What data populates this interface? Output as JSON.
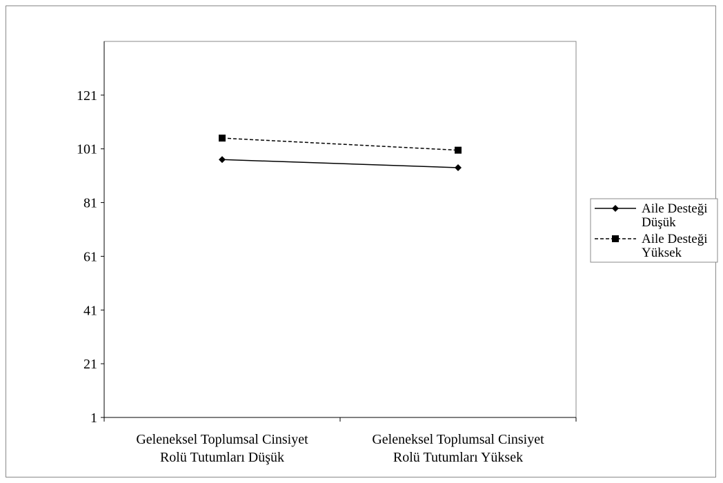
{
  "colors": {
    "line": "#000000",
    "frame": "#888888",
    "background": "#ffffff"
  },
  "chart_data": {
    "type": "line",
    "title": "",
    "xlabel": "",
    "ylabel": "",
    "categories": [
      [
        "Geleneksel Toplumsal Cinsiyet",
        "Rolü Tutumları Düşük"
      ],
      [
        "Geleneksel Toplumsal Cinsiyet",
        "Rolü Tutumları Yüksek"
      ]
    ],
    "ylim": [
      1,
      141
    ],
    "yticks": [
      1,
      21,
      41,
      61,
      81,
      101,
      121
    ],
    "grid": false,
    "legend_position": "right",
    "series": [
      {
        "name": [
          "Aile Desteği",
          "Düşük"
        ],
        "values": [
          97,
          94
        ],
        "marker": "diamond",
        "line_style": "solid"
      },
      {
        "name": [
          "Aile Desteği",
          "Yüksek"
        ],
        "values": [
          105,
          100.5
        ],
        "marker": "square",
        "line_style": "dashed"
      }
    ]
  }
}
